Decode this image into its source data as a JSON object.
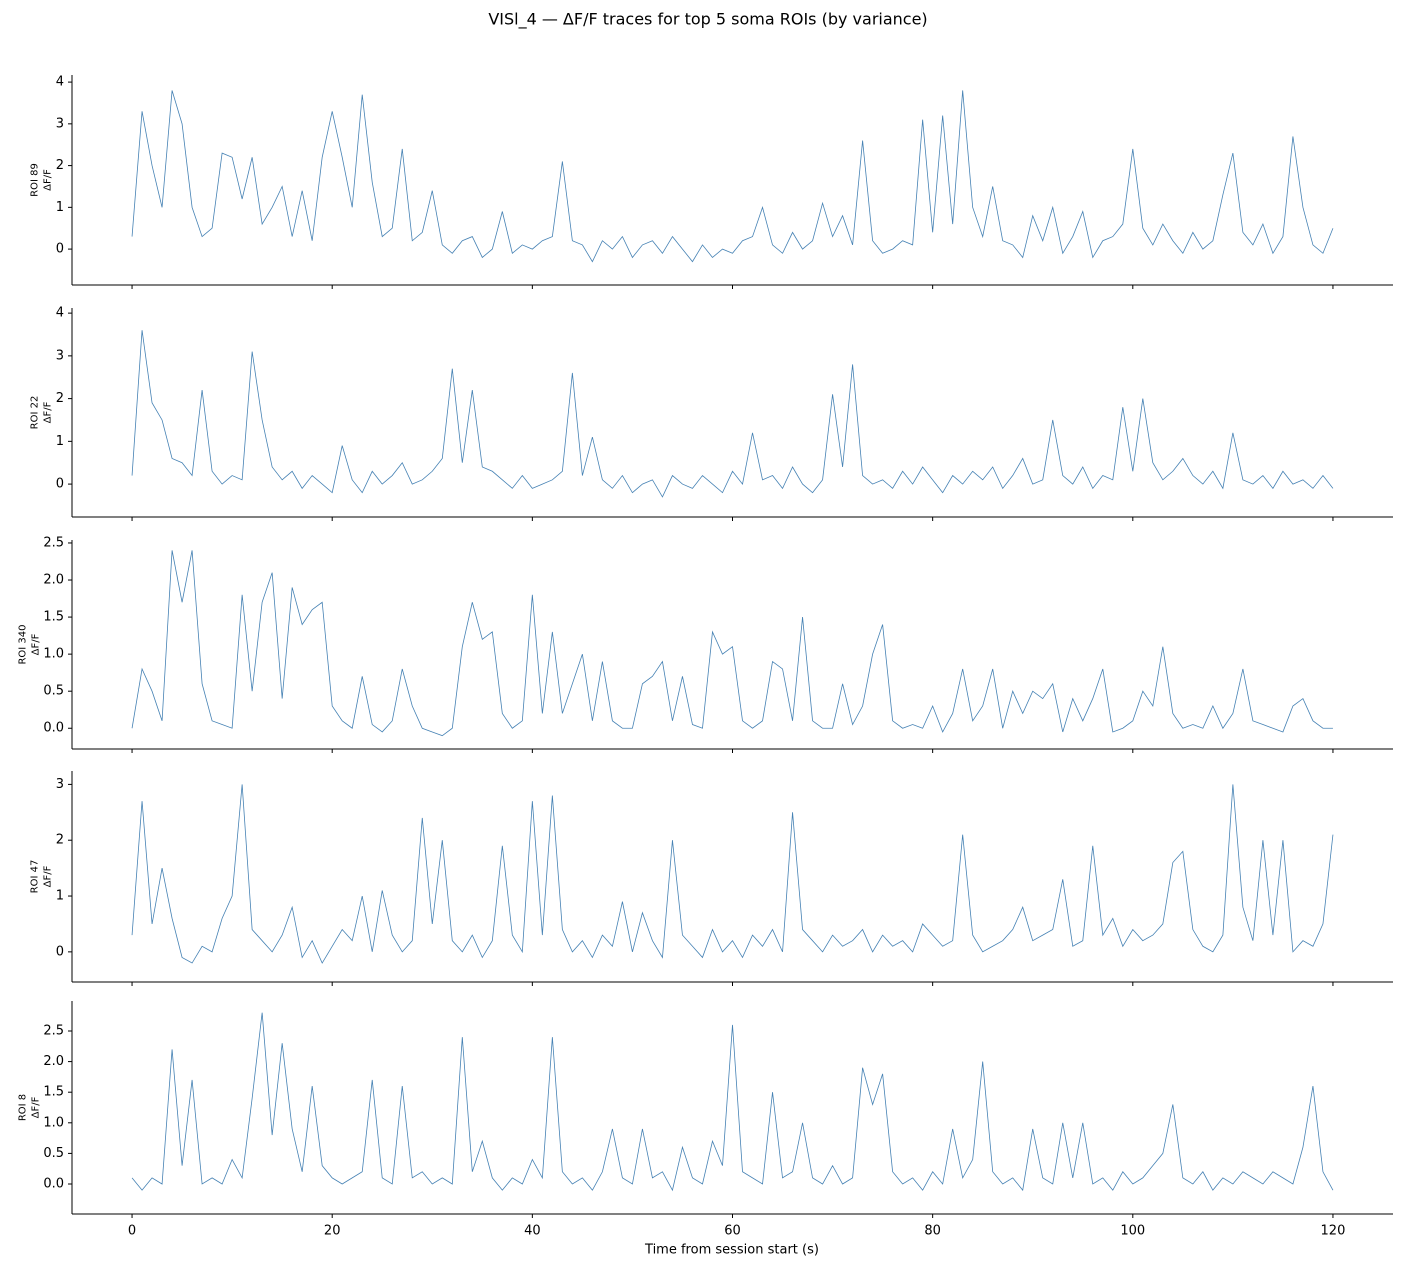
{
  "chart_data": {
    "type": "line",
    "title": "VISl_4 — ΔF/F traces for top 5 soma ROIs (by variance)",
    "xlabel": "Time from session start (s)",
    "color": "#4682b4",
    "xlim": [
      -6,
      126
    ],
    "xticks": [
      0,
      20,
      40,
      60,
      80,
      100,
      120
    ],
    "x": [
      0,
      1,
      2,
      3,
      4,
      5,
      6,
      7,
      8,
      9,
      10,
      11,
      12,
      13,
      14,
      15,
      16,
      17,
      18,
      19,
      20,
      21,
      22,
      23,
      24,
      25,
      26,
      27,
      28,
      29,
      30,
      31,
      32,
      33,
      34,
      35,
      36,
      37,
      38,
      39,
      40,
      41,
      42,
      43,
      44,
      45,
      46,
      47,
      48,
      49,
      50,
      51,
      52,
      53,
      54,
      55,
      56,
      57,
      58,
      59,
      60,
      61,
      62,
      63,
      64,
      65,
      66,
      67,
      68,
      69,
      70,
      71,
      72,
      73,
      74,
      75,
      76,
      77,
      78,
      79,
      80,
      81,
      82,
      83,
      84,
      85,
      86,
      87,
      88,
      89,
      90,
      91,
      92,
      93,
      94,
      95,
      96,
      97,
      98,
      99,
      100,
      101,
      102,
      103,
      104,
      105,
      106,
      107,
      108,
      109,
      110,
      111,
      112,
      113,
      114,
      115,
      116,
      117,
      118,
      119,
      120
    ],
    "panels": [
      {
        "name": "ROI 89",
        "ylabel": "ΔF/F",
        "ylim": [
          -0.86,
          4.17
        ],
        "yticks": [
          0,
          1,
          2,
          3,
          4
        ],
        "values": [
          0.3,
          3.3,
          2.0,
          1.0,
          3.8,
          3.0,
          1.0,
          0.3,
          0.5,
          2.3,
          2.2,
          1.2,
          2.2,
          0.6,
          1.0,
          1.5,
          0.3,
          1.4,
          0.2,
          2.2,
          3.3,
          2.2,
          1.0,
          3.7,
          1.6,
          0.3,
          0.5,
          2.4,
          0.2,
          0.4,
          1.4,
          0.1,
          -0.1,
          0.2,
          0.3,
          -0.2,
          0.0,
          0.9,
          -0.1,
          0.1,
          0.0,
          0.2,
          0.3,
          2.1,
          0.2,
          0.1,
          -0.3,
          0.2,
          0.0,
          0.3,
          -0.2,
          0.1,
          0.2,
          -0.1,
          0.3,
          0.0,
          -0.3,
          0.1,
          -0.2,
          0.0,
          -0.1,
          0.2,
          0.3,
          1.0,
          0.1,
          -0.1,
          0.4,
          0.0,
          0.2,
          1.1,
          0.3,
          0.8,
          0.1,
          2.6,
          0.2,
          -0.1,
          0.0,
          0.2,
          0.1,
          3.1,
          0.4,
          3.2,
          0.6,
          3.8,
          1.0,
          0.3,
          1.5,
          0.2,
          0.1,
          -0.2,
          0.8,
          0.2,
          1.0,
          -0.1,
          0.3,
          0.9,
          -0.2,
          0.2,
          0.3,
          0.6,
          2.4,
          0.5,
          0.1,
          0.6,
          0.2,
          -0.1,
          0.4,
          0.0,
          0.2,
          1.3,
          2.3,
          0.4,
          0.1,
          0.6,
          -0.1,
          0.3,
          2.7,
          1.0,
          0.1,
          -0.1,
          0.5
        ]
      },
      {
        "name": "ROI 22",
        "ylabel": "ΔF/F",
        "ylim": [
          -0.77,
          4.12
        ],
        "yticks": [
          0,
          1,
          2,
          3,
          4
        ],
        "values": [
          0.2,
          3.6,
          1.9,
          1.5,
          0.6,
          0.5,
          0.2,
          2.2,
          0.3,
          0.0,
          0.2,
          0.1,
          3.1,
          1.5,
          0.4,
          0.1,
          0.3,
          -0.1,
          0.2,
          0.0,
          -0.2,
          0.9,
          0.1,
          -0.2,
          0.3,
          0.0,
          0.2,
          0.5,
          0.0,
          0.1,
          0.3,
          0.6,
          2.7,
          0.5,
          2.2,
          0.4,
          0.3,
          0.1,
          -0.1,
          0.2,
          -0.1,
          0.0,
          0.1,
          0.3,
          2.6,
          0.2,
          1.1,
          0.1,
          -0.1,
          0.2,
          -0.2,
          0.0,
          0.1,
          -0.3,
          0.2,
          0.0,
          -0.1,
          0.2,
          0.0,
          -0.2,
          0.3,
          0.0,
          1.2,
          0.1,
          0.2,
          -0.1,
          0.4,
          0.0,
          -0.2,
          0.1,
          2.1,
          0.4,
          2.8,
          0.2,
          0.0,
          0.1,
          -0.1,
          0.3,
          0.0,
          0.4,
          0.1,
          -0.2,
          0.2,
          0.0,
          0.3,
          0.1,
          0.4,
          -0.1,
          0.2,
          0.6,
          0.0,
          0.1,
          1.5,
          0.2,
          0.0,
          0.4,
          -0.1,
          0.2,
          0.1,
          1.8,
          0.3,
          2.0,
          0.5,
          0.1,
          0.3,
          0.6,
          0.2,
          0.0,
          0.3,
          -0.1,
          1.2,
          0.1,
          0.0,
          0.2,
          -0.1,
          0.3,
          0.0,
          0.1,
          -0.1,
          0.2,
          -0.1
        ]
      },
      {
        "name": "ROI 340",
        "ylabel": "ΔF/F",
        "ylim": [
          -0.28,
          2.54
        ],
        "yticks": [
          {
            "value": 0,
            "label": "0.0"
          },
          0.5,
          {
            "value": 1,
            "label": "1.0"
          },
          1.5,
          {
            "value": 2,
            "label": "2.0"
          },
          2.5
        ],
        "values": [
          0.0,
          0.8,
          0.5,
          0.1,
          2.4,
          1.7,
          2.4,
          0.6,
          0.1,
          0.05,
          0.0,
          1.8,
          0.5,
          1.7,
          2.1,
          0.4,
          1.9,
          1.4,
          1.6,
          1.7,
          0.3,
          0.1,
          0.0,
          0.7,
          0.05,
          -0.05,
          0.1,
          0.8,
          0.3,
          0.0,
          -0.05,
          -0.1,
          0.0,
          1.1,
          1.7,
          1.2,
          1.3,
          0.2,
          0.0,
          0.1,
          1.8,
          0.2,
          1.3,
          0.2,
          0.6,
          1.0,
          0.1,
          0.9,
          0.1,
          0.0,
          0.0,
          0.6,
          0.7,
          0.9,
          0.1,
          0.7,
          0.05,
          0.0,
          1.3,
          1.0,
          1.1,
          0.1,
          0.0,
          0.1,
          0.9,
          0.8,
          0.1,
          1.5,
          0.1,
          0.0,
          0.0,
          0.6,
          0.05,
          0.3,
          1.0,
          1.4,
          0.1,
          0.0,
          0.05,
          0.0,
          0.3,
          -0.05,
          0.2,
          0.8,
          0.1,
          0.3,
          0.8,
          0.0,
          0.5,
          0.2,
          0.5,
          0.4,
          0.6,
          -0.05,
          0.4,
          0.1,
          0.4,
          0.8,
          -0.05,
          0.0,
          0.1,
          0.5,
          0.3,
          1.1,
          0.2,
          0.0,
          0.05,
          0.0,
          0.3,
          0.0,
          0.2,
          0.8,
          0.1,
          0.05,
          0.0,
          -0.05,
          0.3,
          0.4,
          0.1,
          0.0,
          0.0
        ]
      },
      {
        "name": "ROI 47",
        "ylabel": "ΔF/F",
        "ylim": [
          -0.54,
          3.24
        ],
        "yticks": [
          0,
          1,
          2,
          3
        ],
        "values": [
          0.3,
          2.7,
          0.5,
          1.5,
          0.6,
          -0.1,
          -0.2,
          0.1,
          0.0,
          0.6,
          1.0,
          3.0,
          0.4,
          0.2,
          0.0,
          0.3,
          0.8,
          -0.1,
          0.2,
          -0.2,
          0.1,
          0.4,
          0.2,
          1.0,
          0.0,
          1.1,
          0.3,
          0.0,
          0.2,
          2.4,
          0.5,
          2.0,
          0.2,
          0.0,
          0.3,
          -0.1,
          0.2,
          1.9,
          0.3,
          0.0,
          2.7,
          0.3,
          2.8,
          0.4,
          0.0,
          0.2,
          -0.1,
          0.3,
          0.1,
          0.9,
          0.0,
          0.7,
          0.2,
          -0.1,
          2.0,
          0.3,
          0.1,
          -0.1,
          0.4,
          0.0,
          0.2,
          -0.1,
          0.3,
          0.1,
          0.4,
          0.0,
          2.5,
          0.4,
          0.2,
          0.0,
          0.3,
          0.1,
          0.2,
          0.4,
          0.0,
          0.3,
          0.1,
          0.2,
          0.0,
          0.5,
          0.3,
          0.1,
          0.2,
          2.1,
          0.3,
          0.0,
          0.1,
          0.2,
          0.4,
          0.8,
          0.2,
          0.3,
          0.4,
          1.3,
          0.1,
          0.2,
          1.9,
          0.3,
          0.6,
          0.1,
          0.4,
          0.2,
          0.3,
          0.5,
          1.6,
          1.8,
          0.4,
          0.1,
          0.0,
          0.3,
          3.0,
          0.8,
          0.2,
          2.0,
          0.3,
          2.0,
          0.0,
          0.2,
          0.1,
          0.5,
          2.1
        ]
      },
      {
        "name": "ROI 8",
        "ylabel": "ΔF/F",
        "ylim": [
          -0.49,
          2.99
        ],
        "yticks": [
          {
            "value": 0,
            "label": "0.0"
          },
          0.5,
          {
            "value": 1,
            "label": "1.0"
          },
          1.5,
          {
            "value": 2,
            "label": "2.0"
          },
          2.5
        ],
        "values": [
          0.1,
          -0.1,
          0.1,
          0.0,
          2.2,
          0.3,
          1.7,
          0.0,
          0.1,
          0.0,
          0.4,
          0.1,
          1.4,
          2.8,
          0.8,
          2.3,
          0.9,
          0.2,
          1.6,
          0.3,
          0.1,
          0.0,
          0.1,
          0.2,
          1.7,
          0.1,
          0.0,
          1.6,
          0.1,
          0.2,
          0.0,
          0.1,
          0.0,
          2.4,
          0.2,
          0.7,
          0.1,
          -0.1,
          0.1,
          0.0,
          0.4,
          0.1,
          2.4,
          0.2,
          0.0,
          0.1,
          -0.1,
          0.2,
          0.9,
          0.1,
          0.0,
          0.9,
          0.1,
          0.2,
          -0.1,
          0.6,
          0.1,
          0.0,
          0.7,
          0.3,
          2.6,
          0.2,
          0.1,
          0.0,
          1.5,
          0.1,
          0.2,
          1.0,
          0.1,
          0.0,
          0.3,
          0.0,
          0.1,
          1.9,
          1.3,
          1.8,
          0.2,
          0.0,
          0.1,
          -0.1,
          0.2,
          0.0,
          0.9,
          0.1,
          0.4,
          2.0,
          0.2,
          0.0,
          0.1,
          -0.1,
          0.9,
          0.1,
          0.0,
          1.0,
          0.1,
          1.0,
          0.0,
          0.1,
          -0.1,
          0.2,
          0.0,
          0.1,
          0.3,
          0.5,
          1.3,
          0.1,
          0.0,
          0.2,
          -0.1,
          0.1,
          0.0,
          0.2,
          0.1,
          0.0,
          0.2,
          0.1,
          0.0,
          0.6,
          1.6,
          0.2,
          -0.1
        ]
      }
    ]
  }
}
